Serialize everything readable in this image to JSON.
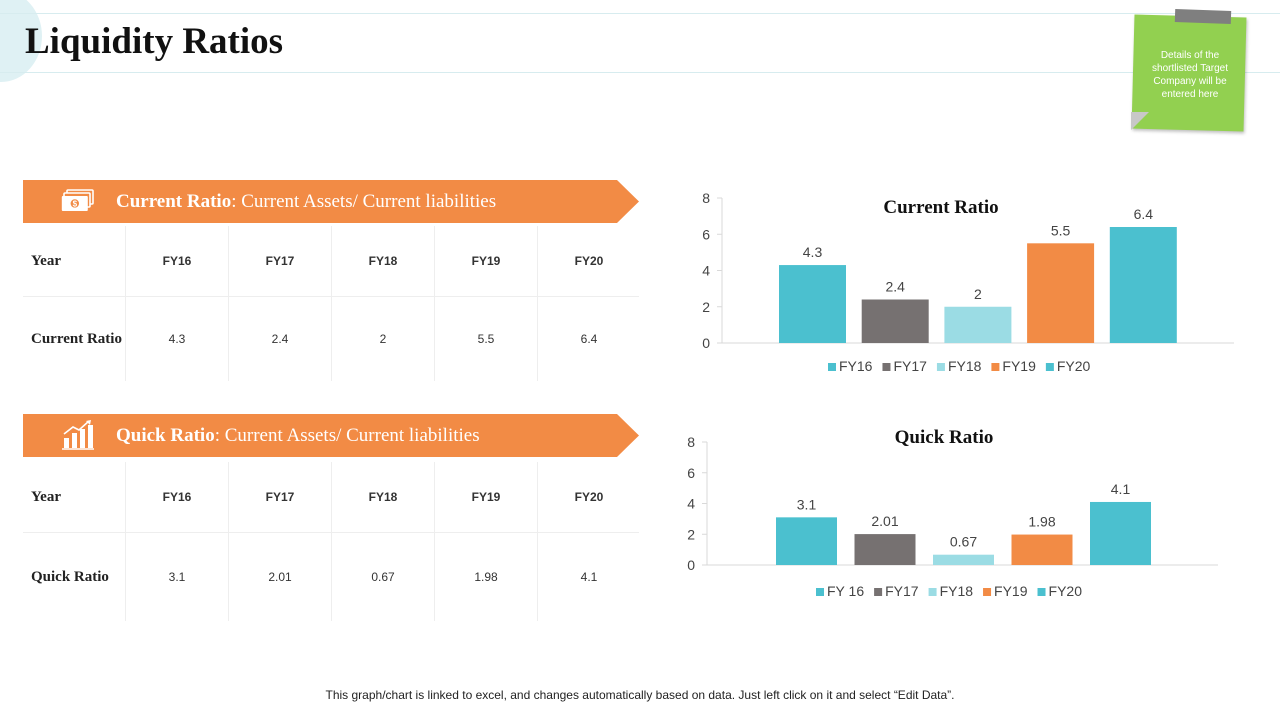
{
  "page": {
    "title": "Liquidity Ratios",
    "footer": "This graph/chart is linked to excel, and changes automatically based on data. Just left click on it and select “Edit Data”."
  },
  "sticky_note": {
    "text": "Details of the shortlisted Target Company will be entered here",
    "color": "#92d050"
  },
  "sections": [
    {
      "banner_bold": "Current Ratio",
      "banner_rest": ": Current Assets/ Current liabilities",
      "icon": "money-icon",
      "table": {
        "header": [
          "Year",
          "FY16",
          "FY17",
          "FY18",
          "FY19",
          "FY20"
        ],
        "row": [
          "Current Ratio",
          "4.3",
          "2.4",
          "2",
          "5.5",
          "6.4"
        ]
      }
    },
    {
      "banner_bold": "Quick Ratio",
      "banner_rest": ": Current Assets/ Current liabilities",
      "icon": "bar-growth-icon",
      "table": {
        "header": [
          "Year",
          "FY16",
          "FY17",
          "FY18",
          "FY19",
          "FY20"
        ],
        "row": [
          "Quick Ratio",
          "3.1",
          "2.01",
          "0.67",
          "1.98",
          "4.1"
        ]
      }
    }
  ],
  "colors": {
    "accent_orange": "#f28b45",
    "teal": "#4bc0cf",
    "gray": "#767171",
    "light_teal": "#9bdce4"
  },
  "chart_data": [
    {
      "type": "bar",
      "title": "Current Ratio",
      "categories": [
        "FY16",
        "FY17",
        "FY18",
        "FY19",
        "FY20"
      ],
      "values": [
        4.3,
        2.4,
        2,
        5.5,
        6.4
      ],
      "data_labels": [
        "4.3",
        "2.4",
        "2",
        "5.5",
        "6.4"
      ],
      "bar_colors": [
        "#4bc0cf",
        "#767171",
        "#9bdce4",
        "#f28b45",
        "#4bc0cf"
      ],
      "ylim": [
        0,
        8
      ],
      "yticks": [
        "0",
        "2",
        "4",
        "6",
        "8"
      ],
      "legend": [
        "FY16",
        "FY17",
        "FY18",
        "FY19",
        "FY20"
      ],
      "legend_position": "bottom",
      "grid": false
    },
    {
      "type": "bar",
      "title": "Quick Ratio",
      "categories": [
        "FY 16",
        "FY17",
        "FY18",
        "FY19",
        "FY20"
      ],
      "values": [
        3.1,
        2.01,
        0.67,
        1.98,
        4.1
      ],
      "data_labels": [
        "3.1",
        "2.01",
        "0.67",
        "1.98",
        "4.1"
      ],
      "bar_colors": [
        "#4bc0cf",
        "#767171",
        "#9bdce4",
        "#f28b45",
        "#4bc0cf"
      ],
      "ylim": [
        0,
        8
      ],
      "yticks": [
        "0",
        "2",
        "4",
        "6",
        "8"
      ],
      "legend": [
        "FY 16",
        "FY17",
        "FY18",
        "FY19",
        "FY20"
      ],
      "legend_position": "bottom",
      "grid": false
    }
  ]
}
